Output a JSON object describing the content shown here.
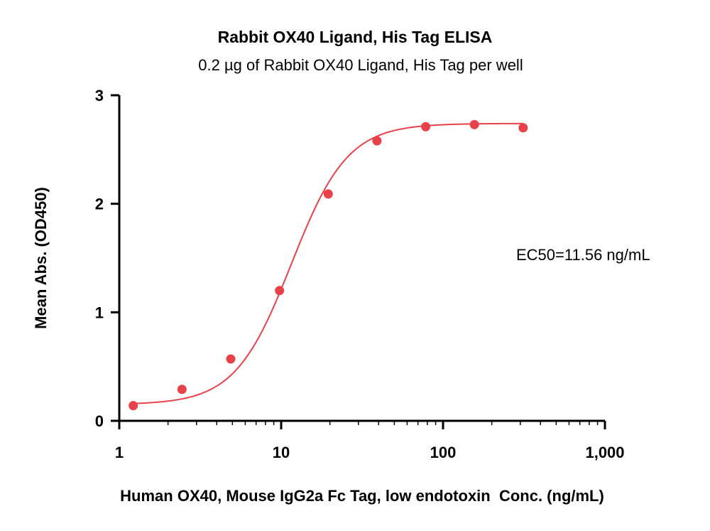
{
  "chart_data": {
    "type": "scatter",
    "title": "Rabbit OX40 Ligand, His Tag ELISA",
    "subtitle": "0.2 µg of Rabbit OX40 Ligand, His Tag per well",
    "xlabel": "Human OX40, Mouse IgG2a Fc Tag, low endotoxin  Conc. (ng/mL)",
    "ylabel": "Mean Abs. (OD450)",
    "x_scale": "log",
    "xlim": [
      1,
      1000
    ],
    "ylim": [
      0,
      3
    ],
    "x_ticks": [
      1,
      10,
      100,
      1000
    ],
    "x_tick_labels": [
      "1",
      "10",
      "100",
      "1,000"
    ],
    "y_ticks": [
      0,
      1,
      2,
      3
    ],
    "y_tick_labels": [
      "0",
      "1",
      "2",
      "3"
    ],
    "annotation": "EC50=11.56 ng/mL",
    "color": "#e8414a",
    "series": [
      {
        "x": [
          1.22,
          2.44,
          4.88,
          9.77,
          19.53,
          39.06,
          78.13,
          156.25,
          312.5
        ],
        "y": [
          0.14,
          0.29,
          0.57,
          1.2,
          2.09,
          2.58,
          2.71,
          2.73,
          2.7
        ]
      }
    ],
    "fit": {
      "model": "4PL",
      "bottom": 0.15,
      "top": 2.74,
      "ec50": 11.56,
      "hill": 2.5,
      "x_range": [
        1.22,
        312.5
      ]
    }
  }
}
